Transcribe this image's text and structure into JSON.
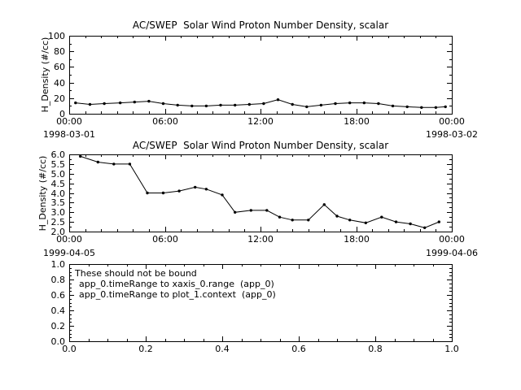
{
  "window": {
    "background": "#ffffff",
    "foreground": "#000000"
  },
  "chart_data": [
    {
      "type": "line",
      "title": "AC/SWEP  Solar Wind Proton Number Density, scalar",
      "ylabel": "H_Density (#/cc)",
      "xlabel": "",
      "x_date_left": "1998-03-01",
      "x_date_right": "1998-03-02",
      "xlim": [
        0,
        24
      ],
      "ylim": [
        0,
        100
      ],
      "xticks": {
        "major": [
          0,
          6,
          12,
          18,
          24
        ],
        "labels": [
          "00:00",
          "06:00",
          "12:00",
          "18:00",
          "00:00"
        ],
        "minor_step": 1
      },
      "yticks": {
        "major": [
          0,
          20,
          40,
          60,
          80,
          100
        ],
        "labels": [
          "0",
          "20",
          "40",
          "60",
          "80",
          "100"
        ],
        "minor_step": 10
      },
      "grid": false,
      "marker": "dot",
      "line_color": "#000000",
      "series": [
        {
          "name": "H_Density",
          "x": [
            0.4,
            1.3,
            2.2,
            3.2,
            4.1,
            5.0,
            5.9,
            6.8,
            7.7,
            8.6,
            9.5,
            10.4,
            11.3,
            12.2,
            13.1,
            14.0,
            14.9,
            15.8,
            16.7,
            17.6,
            18.5,
            19.4,
            20.3,
            21.2,
            22.1,
            23.0,
            23.6
          ],
          "y": [
            14,
            12,
            13,
            14,
            15,
            16,
            13,
            11,
            10,
            10,
            11,
            11,
            12,
            13,
            18,
            12,
            9,
            11,
            13,
            14,
            14,
            13,
            10,
            9,
            8,
            8,
            9
          ]
        }
      ]
    },
    {
      "type": "line",
      "title": "AC/SWEP  Solar Wind Proton Number Density, scalar",
      "ylabel": "H_Density (#/cc)",
      "xlabel": "",
      "x_date_left": "1999-04-05",
      "x_date_right": "1999-04-06",
      "xlim": [
        0,
        24
      ],
      "ylim": [
        2.0,
        6.0
      ],
      "xticks": {
        "major": [
          0,
          6,
          12,
          18,
          24
        ],
        "labels": [
          "00:00",
          "06:00",
          "12:00",
          "18:00",
          "00:00"
        ],
        "minor_step": 1
      },
      "yticks": {
        "major": [
          2.0,
          2.5,
          3.0,
          3.5,
          4.0,
          4.5,
          5.0,
          5.5,
          6.0
        ],
        "labels": [
          "2.0",
          "2.5",
          "3.0",
          "3.5",
          "4.0",
          "4.5",
          "5.0",
          "5.5",
          "6.0"
        ],
        "minor_step": 0.25
      },
      "grid": false,
      "marker": "dot",
      "line_color": "#000000",
      "series": [
        {
          "name": "H_Density",
          "x": [
            0.7,
            1.8,
            2.8,
            3.8,
            4.9,
            5.9,
            6.9,
            7.9,
            8.6,
            9.6,
            10.4,
            11.4,
            12.4,
            13.2,
            14.0,
            15.0,
            16.0,
            16.8,
            17.6,
            18.6,
            19.6,
            20.5,
            21.4,
            22.3,
            23.2
          ],
          "y": [
            5.9,
            5.6,
            5.5,
            5.5,
            4.0,
            4.0,
            4.1,
            4.3,
            4.2,
            3.9,
            3.0,
            3.1,
            3.1,
            2.75,
            2.6,
            2.6,
            3.4,
            2.8,
            2.6,
            2.45,
            2.75,
            2.5,
            2.4,
            2.2,
            2.5
          ]
        }
      ]
    },
    {
      "type": "line",
      "title": "",
      "ylabel": "",
      "xlabel": "",
      "xlim": [
        0,
        1
      ],
      "ylim": [
        0,
        1
      ],
      "xticks": {
        "major": [
          0,
          0.2,
          0.4,
          0.6,
          0.8,
          1.0
        ],
        "labels": [
          "0.0",
          "0.2",
          "0.4",
          "0.6",
          "0.8",
          "1.0"
        ],
        "minor_step": 0.05
      },
      "yticks": {
        "major": [
          0,
          0.2,
          0.4,
          0.6,
          0.8,
          1.0
        ],
        "labels": [
          "0.0",
          "0.2",
          "0.4",
          "0.6",
          "0.8",
          "1.0"
        ],
        "minor_step": 0.05
      },
      "grid": false,
      "series": [],
      "annotations": [
        "These should not be bound",
        "app_0.timeRange to xaxis_0.range  (app_0)",
        "app_0.timeRange to plot_1.context  (app_0)"
      ]
    }
  ]
}
